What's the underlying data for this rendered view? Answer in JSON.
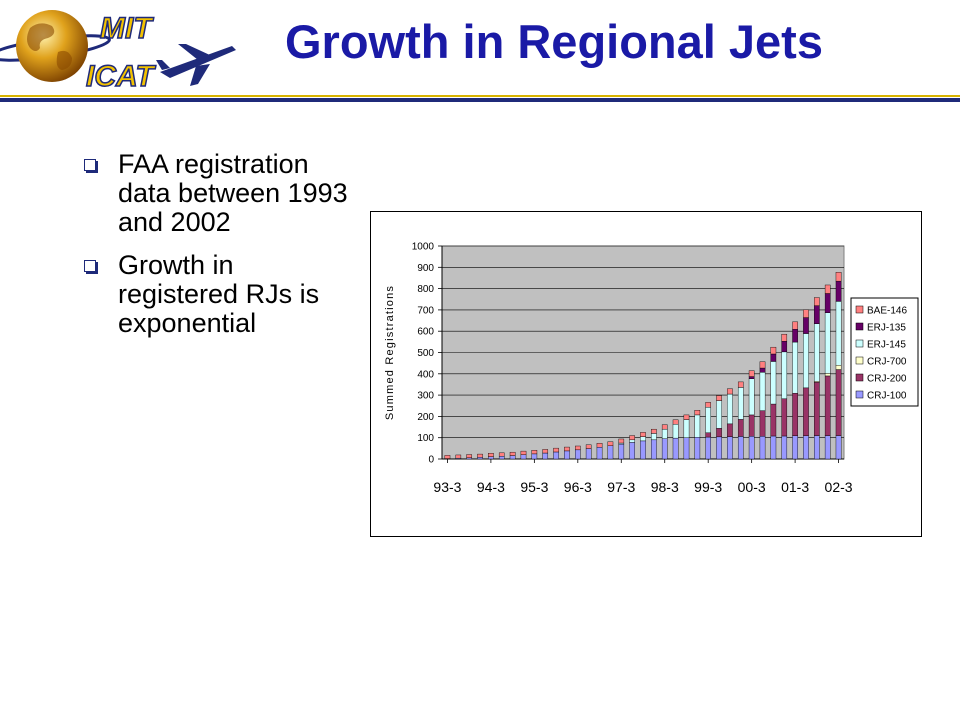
{
  "logo": {
    "line1": "MIT",
    "line2": "ICAT"
  },
  "slide": {
    "title": "Growth in Regional Jets",
    "bullets": [
      "FAA registration data between 1993 and 2002",
      "Growth in registered RJs is exponential"
    ]
  },
  "colors": {
    "title": "#1a1aa6",
    "plot_area": "#c0c0c0",
    "CRJ-100": "#9999ff",
    "CRJ-200": "#993366",
    "CRJ-700": "#ffffcc",
    "ERJ-145": "#ccffff",
    "ERJ-135": "#660066",
    "BAE-146": "#ff8080"
  },
  "chart_data": {
    "type": "bar",
    "stacked": true,
    "xlabel": "",
    "ylabel": "Summed Registrations",
    "ylim": [
      0,
      1000
    ],
    "yticks": [
      0,
      100,
      200,
      300,
      400,
      500,
      600,
      700,
      800,
      900,
      1000
    ],
    "xtick_labels": [
      "93-3",
      "94-3",
      "95-3",
      "96-3",
      "97-3",
      "98-3",
      "99-3",
      "00-3",
      "01-3",
      "02-3"
    ],
    "legend_position": "right",
    "legend_order": [
      "BAE-146",
      "ERJ-135",
      "ERJ-145",
      "CRJ-700",
      "CRJ-200",
      "CRJ-100"
    ],
    "categories": [
      "93-3",
      "93-4",
      "94-1",
      "94-2",
      "94-3",
      "94-4",
      "95-1",
      "95-2",
      "95-3",
      "95-4",
      "96-1",
      "96-2",
      "96-3",
      "96-4",
      "97-1",
      "97-2",
      "97-3",
      "97-4",
      "98-1",
      "98-2",
      "98-3",
      "98-4",
      "99-1",
      "99-2",
      "99-3",
      "99-4",
      "00-1",
      "00-2",
      "00-3",
      "00-4",
      "01-1",
      "01-2",
      "01-3",
      "01-4",
      "02-1",
      "02-2",
      "02-3"
    ],
    "series": [
      {
        "name": "CRJ-100",
        "values": [
          2,
          4,
          6,
          8,
          11,
          13,
          16,
          20,
          24,
          28,
          33,
          38,
          43,
          49,
          55,
          62,
          70,
          78,
          85,
          90,
          95,
          98,
          100,
          102,
          103,
          104,
          105,
          106,
          107,
          107,
          108,
          108,
          109,
          109,
          110,
          110,
          110
        ]
      },
      {
        "name": "CRJ-200",
        "values": [
          0,
          0,
          0,
          0,
          0,
          0,
          0,
          0,
          0,
          0,
          0,
          0,
          0,
          0,
          0,
          0,
          0,
          0,
          0,
          0,
          0,
          0,
          0,
          0,
          20,
          40,
          60,
          80,
          100,
          120,
          150,
          175,
          200,
          225,
          250,
          280,
          310
        ]
      },
      {
        "name": "CRJ-700",
        "values": [
          0,
          0,
          0,
          0,
          0,
          0,
          0,
          0,
          0,
          0,
          0,
          0,
          0,
          0,
          0,
          0,
          0,
          0,
          0,
          0,
          0,
          0,
          0,
          0,
          0,
          0,
          0,
          0,
          0,
          0,
          0,
          0,
          0,
          0,
          5,
          12,
          20
        ]
      },
      {
        "name": "ERJ-145",
        "values": [
          0,
          0,
          0,
          0,
          0,
          0,
          0,
          0,
          0,
          0,
          0,
          0,
          0,
          0,
          0,
          0,
          5,
          12,
          20,
          30,
          45,
          65,
          85,
          105,
          120,
          130,
          140,
          150,
          170,
          180,
          200,
          220,
          240,
          255,
          270,
          285,
          300
        ]
      },
      {
        "name": "ERJ-135",
        "values": [
          0,
          0,
          0,
          0,
          0,
          0,
          0,
          0,
          0,
          0,
          0,
          0,
          0,
          0,
          0,
          0,
          0,
          0,
          0,
          0,
          0,
          0,
          0,
          0,
          0,
          0,
          0,
          0,
          10,
          20,
          35,
          50,
          60,
          75,
          85,
          90,
          95
        ]
      },
      {
        "name": "BAE-146",
        "values": [
          15,
          15,
          15,
          15,
          16,
          16,
          16,
          17,
          17,
          17,
          18,
          18,
          18,
          18,
          19,
          19,
          19,
          20,
          20,
          20,
          21,
          21,
          22,
          22,
          23,
          24,
          25,
          26,
          28,
          30,
          32,
          33,
          35,
          37,
          38,
          40,
          42
        ]
      }
    ]
  }
}
